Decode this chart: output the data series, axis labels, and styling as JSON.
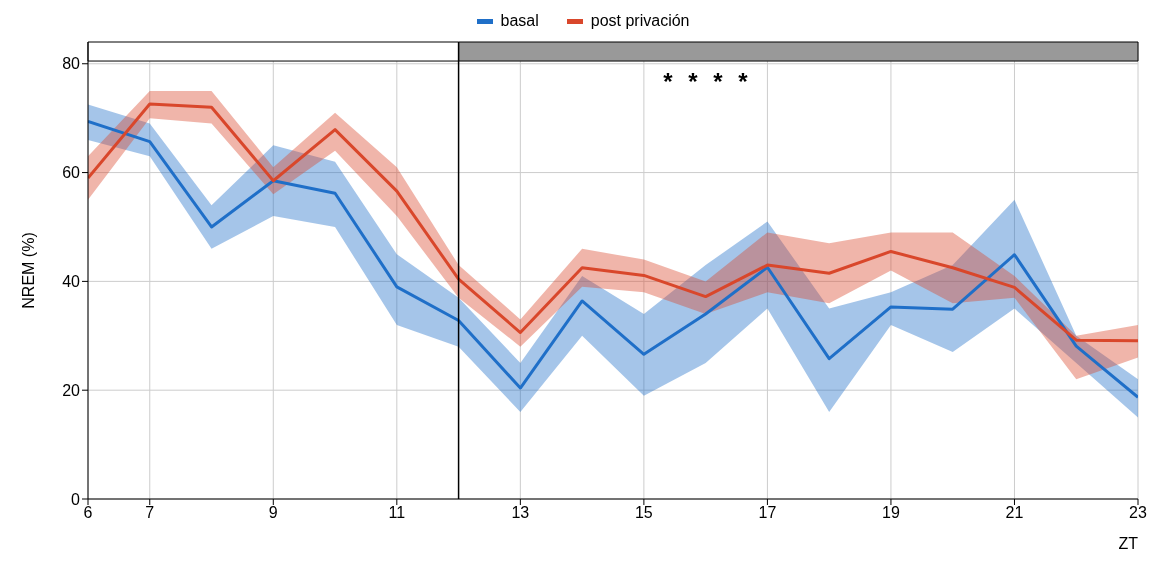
{
  "chart_data": {
    "type": "line",
    "xlabel": "ZT",
    "ylabel": "NREM (%)",
    "x": [
      6,
      7,
      8,
      9,
      10,
      11,
      12,
      13,
      14,
      15,
      16,
      17,
      18,
      19,
      20,
      21,
      22,
      23
    ],
    "series": [
      {
        "name": "basal",
        "color": "#1f6fc8",
        "values": [
          69.4,
          65.7,
          50,
          58.5,
          56.2,
          39,
          32.8,
          20.4,
          36.4,
          26.6,
          34,
          42.6,
          25.8,
          35.3,
          34.9,
          44.9,
          28.1,
          18.7
        ],
        "lower": [
          66,
          63,
          46,
          52,
          50,
          32,
          28,
          16,
          30,
          19,
          25,
          35,
          16,
          32,
          27,
          35,
          25,
          15
        ],
        "upper": [
          72.5,
          69,
          54,
          65,
          62,
          45,
          37,
          25,
          41,
          34,
          43,
          51,
          35,
          38,
          43,
          55,
          30,
          22
        ]
      },
      {
        "name": "post privación",
        "color": "#d9472b",
        "values": [
          59,
          72.6,
          72,
          58.5,
          67.9,
          56.6,
          40.4,
          30.6,
          42.5,
          41.1,
          37.2,
          43,
          41.5,
          45.5,
          42.5,
          38.9,
          29.2,
          29.1
        ],
        "lower": [
          55,
          70,
          69,
          56,
          64,
          52,
          37,
          28,
          39,
          38,
          34,
          38,
          36,
          42,
          36,
          37,
          22,
          26
        ],
        "upper": [
          63,
          75,
          75,
          61,
          71,
          61,
          43,
          33,
          46,
          44,
          40,
          49,
          47,
          49,
          49,
          41,
          30,
          32
        ]
      }
    ],
    "xlim": [
      6,
      23
    ],
    "xticks": [
      6,
      7,
      9,
      11,
      13,
      15,
      17,
      19,
      21,
      23
    ],
    "ylim": [
      0,
      84
    ],
    "yticks": [
      0,
      20,
      40,
      60,
      80
    ],
    "grid": true,
    "legend": "top",
    "marker": "none",
    "line_style": "solid",
    "ref_lines": [
      {
        "axis": "x",
        "value": 12,
        "color": "#000000"
      }
    ],
    "bands": [
      {
        "axis": "x",
        "from": 6,
        "to": 12,
        "color": "#ffffff"
      },
      {
        "axis": "x",
        "from": 12,
        "to": 23,
        "color": "#999999"
      }
    ],
    "annotations": [
      "*",
      "*",
      "*",
      "*"
    ]
  }
}
